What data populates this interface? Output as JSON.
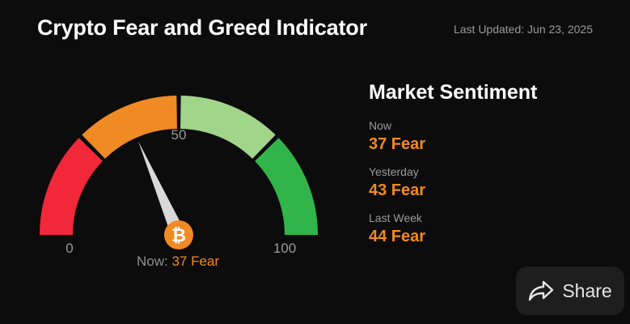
{
  "header": {
    "title": "Crypto Fear and Greed Indicator",
    "last_updated": "Last Updated: Jun 23, 2025"
  },
  "gauge": {
    "min_label": "0",
    "mid_label": "50",
    "max_label": "100",
    "value": 37,
    "now_prefix": "Now:",
    "now_value": "37 Fear",
    "center_icon": "bitcoin-icon",
    "segment_colors": [
      "#f1273a",
      "#f08a24",
      "#a0d58a",
      "#31b54a"
    ],
    "needle_color": "#d9d9d9",
    "badge_color": "#f08a24"
  },
  "sentiment": {
    "title": "Market Sentiment",
    "rows": [
      {
        "label": "Now",
        "value": "37 Fear"
      },
      {
        "label": "Yesterday",
        "value": "43 Fear"
      },
      {
        "label": "Last Week",
        "value": "44 Fear"
      }
    ],
    "value_color": "#f08a24"
  },
  "share": {
    "label": "Share",
    "icon": "share-arrow-icon"
  }
}
